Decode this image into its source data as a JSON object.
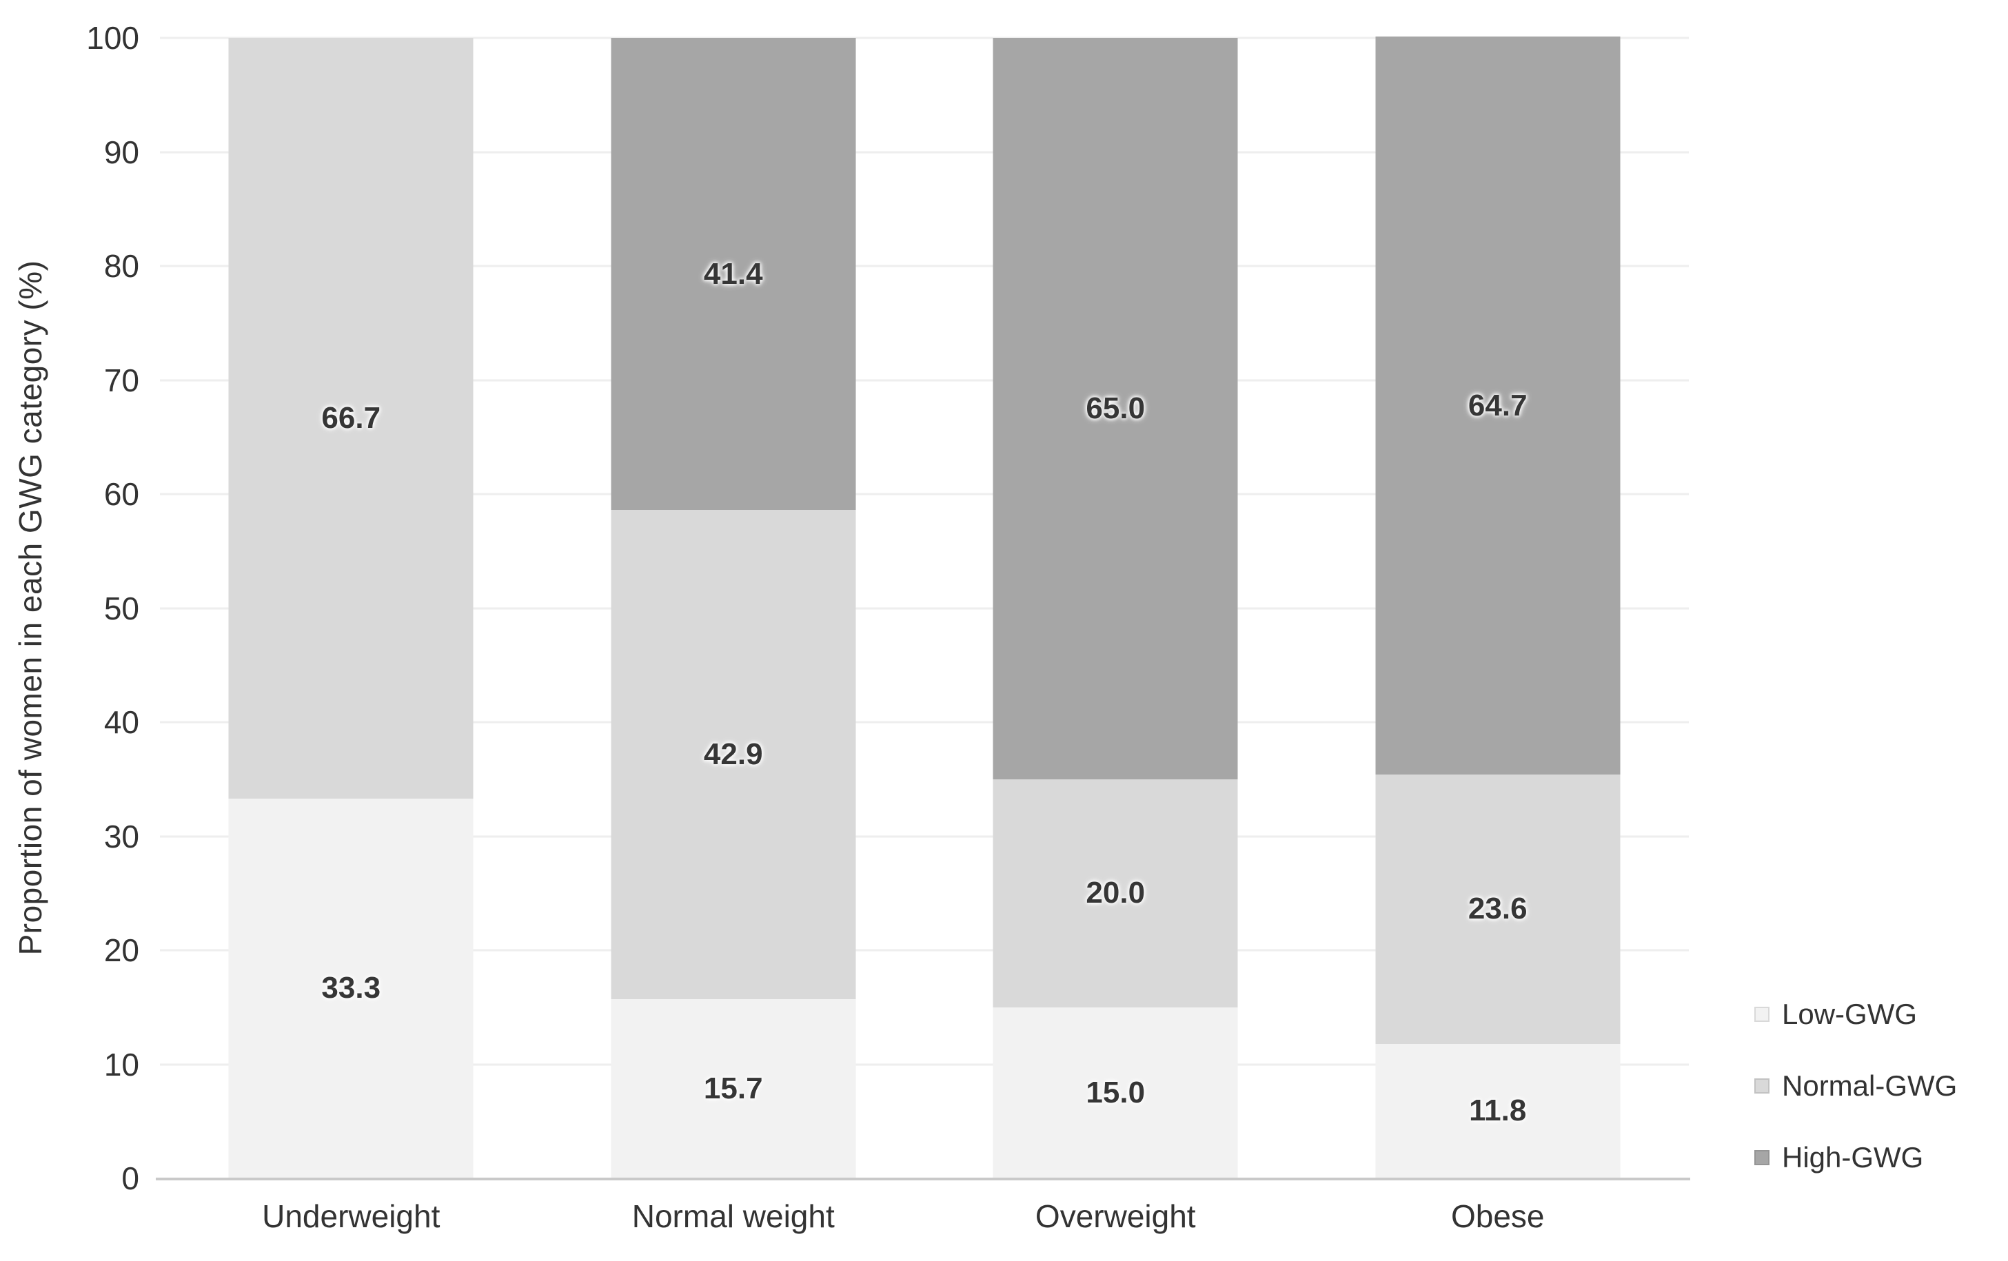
{
  "chart_data": {
    "type": "bar",
    "stacked": true,
    "percent_stacked": true,
    "title": "",
    "xlabel": "",
    "ylabel": "Proportion of women in each GWG category (%)",
    "ylim": [
      0,
      100
    ],
    "yticks": [
      0,
      10,
      20,
      30,
      40,
      50,
      60,
      70,
      80,
      90,
      100
    ],
    "grid": true,
    "categories": [
      "Underweight",
      "Normal weight",
      "Overweight",
      "Obese"
    ],
    "series": [
      {
        "name": "Low-GWG",
        "color": "#f2f2f2",
        "values": [
          33.3,
          15.7,
          15.0,
          11.8
        ],
        "labels": [
          "33.3",
          "15.7",
          "15.0",
          "11.8"
        ]
      },
      {
        "name": "Normal-GWG",
        "color": "#d9d9d9",
        "values": [
          66.7,
          42.9,
          20.0,
          23.6
        ],
        "labels": [
          "66.7",
          "42.9",
          "20.0",
          "23.6"
        ]
      },
      {
        "name": "High-GWG",
        "color": "#a6a6a6",
        "values": [
          0,
          41.4,
          65.0,
          64.7
        ],
        "labels": [
          "",
          "41.4",
          "65.0",
          "64.7"
        ]
      }
    ],
    "legend": {
      "position": "right",
      "entries": [
        "Low-GWG",
        "Normal-GWG",
        "High-GWG"
      ]
    },
    "colors": {
      "gridline": "#eeeeee",
      "axis_line": "#c9c9c9",
      "text": "#333333"
    }
  }
}
